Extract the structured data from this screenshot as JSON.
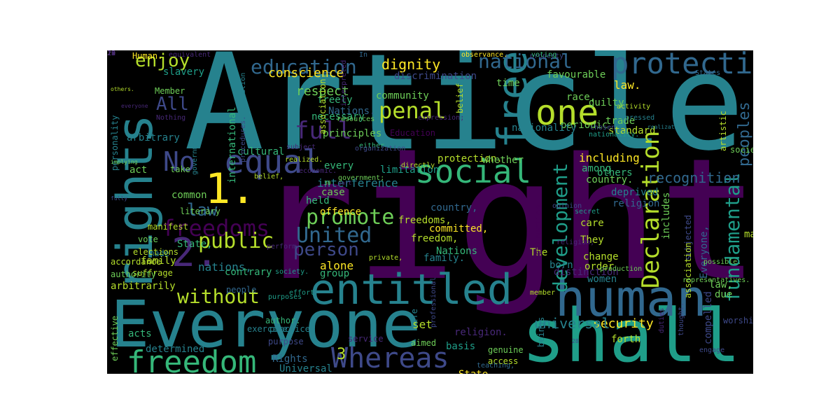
{
  "figure": {
    "background": "#000000",
    "page_background": "#ffffff",
    "palette": [
      "#440154",
      "#482878",
      "#3e4989",
      "#31688e",
      "#26828e",
      "#1f9e89",
      "#35b779",
      "#6ece58",
      "#b5de2b",
      "#fde725"
    ]
  },
  "words": [
    {
      "text": "Article",
      "color": "#26828e"
    },
    {
      "text": "right",
      "color": "#440154"
    },
    {
      "text": "Everyone",
      "color": "#26828e"
    },
    {
      "text": "shall",
      "color": "#1f9e89"
    },
    {
      "text": "human",
      "color": "#31688e"
    },
    {
      "text": "rights",
      "color": "#26828e"
    },
    {
      "text": "entitled",
      "color": "#26828e"
    },
    {
      "text": "freedom",
      "color": "#35b779"
    },
    {
      "text": "Whereas",
      "color": "#3e4989"
    },
    {
      "text": "equal",
      "color": "#3e4989"
    },
    {
      "text": "social",
      "color": "#35b779"
    },
    {
      "text": "one",
      "color": "#b5de2b"
    },
    {
      "text": "protection",
      "color": "#31688e"
    },
    {
      "text": "free",
      "color": "#26828e"
    },
    {
      "text": "national",
      "color": "#31688e"
    },
    {
      "text": "education",
      "color": "#31688e"
    },
    {
      "text": "No",
      "color": "#3e4989"
    },
    {
      "text": "1.",
      "color": "#fde725"
    },
    {
      "text": "2.",
      "color": "#482878"
    },
    {
      "text": "freedoms",
      "color": "#440154"
    },
    {
      "text": "Declaration",
      "color": "#b5de2b"
    },
    {
      "text": "fundamental",
      "color": "#1f9e89"
    },
    {
      "text": "development",
      "color": "#1f9e89"
    },
    {
      "text": "United",
      "color": "#31688e"
    },
    {
      "text": "public",
      "color": "#b5de2b"
    },
    {
      "text": "promote",
      "color": "#6ece58"
    },
    {
      "text": "full",
      "color": "#482878"
    },
    {
      "text": "penal",
      "color": "#b5de2b"
    },
    {
      "text": "enjoy",
      "color": "#b5de2b"
    },
    {
      "text": "All",
      "color": "#3e4989"
    },
    {
      "text": "law",
      "color": "#31688e"
    },
    {
      "text": "person",
      "color": "#3e4989"
    },
    {
      "text": "without",
      "color": "#b5de2b"
    },
    {
      "text": "peoples",
      "color": "#31688e"
    },
    {
      "text": "3",
      "color": "#b5de2b"
    },
    {
      "text": "dignity",
      "color": "#fde725"
    },
    {
      "text": "respect",
      "color": "#6ece58"
    },
    {
      "text": "conscience",
      "color": "#fde725"
    },
    {
      "text": "recognition",
      "color": "#31688e"
    },
    {
      "text": "security",
      "color": "#fde725"
    },
    {
      "text": "universal",
      "color": "#26828e"
    },
    {
      "text": "nations,",
      "color": "#26828e"
    },
    {
      "text": "interference",
      "color": "#26828e"
    },
    {
      "text": "Human.",
      "color": "#fde725"
    },
    {
      "text": "equivalent",
      "color": "#482878"
    },
    {
      "text": "observance.",
      "color": "#fde725"
    },
    {
      "text": "property.",
      "color": "#3e4989"
    },
    {
      "text": "In",
      "color": "#31688e"
    },
    {
      "text": "slavery",
      "color": "#1f9e89"
    },
    {
      "text": "Member",
      "color": "#6ece58"
    },
    {
      "text": "personality",
      "color": "#26828e"
    },
    {
      "text": "arbitrary",
      "color": "#26828e"
    },
    {
      "text": "international",
      "color": "#35b779"
    },
    {
      "text": "act",
      "color": "#6ece58"
    },
    {
      "text": "common",
      "color": "#6ece58"
    },
    {
      "text": "family",
      "color": "#b5de2b"
    },
    {
      "text": "arbitrarily",
      "color": "#b5de2b"
    },
    {
      "text": "acts",
      "color": "#35b779"
    },
    {
      "text": "determined",
      "color": "#26828e"
    },
    {
      "text": "effective",
      "color": "#6ece58"
    },
    {
      "text": "State,",
      "color": "#35b779"
    },
    {
      "text": "made",
      "color": "#26828e"
    },
    {
      "text": "alone",
      "color": "#fde725"
    },
    {
      "text": "group",
      "color": "#35b779"
    },
    {
      "text": "contrary",
      "color": "#35b779"
    },
    {
      "text": "Rights",
      "color": "#31688e"
    },
    {
      "text": "Universal",
      "color": "#26828e"
    },
    {
      "text": "basis",
      "color": "#1f9e89"
    },
    {
      "text": "State.",
      "color": "#fde725"
    },
    {
      "text": "set",
      "color": "#b5de2b"
    },
    {
      "text": "forth",
      "color": "#b5de2b"
    },
    {
      "text": "standard",
      "color": "#b5de2b"
    },
    {
      "text": "trade",
      "color": "#6ece58"
    },
    {
      "text": "guilty",
      "color": "#6ece58"
    },
    {
      "text": "law.",
      "color": "#fde725"
    },
    {
      "text": "periodic",
      "color": "#6ece58"
    },
    {
      "text": "nationality",
      "color": "#26828e"
    },
    {
      "text": "favourable",
      "color": "#6ece58"
    },
    {
      "text": "time",
      "color": "#6ece58"
    },
    {
      "text": "race,",
      "color": "#6ece58"
    },
    {
      "text": "community",
      "color": "#6ece58"
    },
    {
      "text": "discrimination",
      "color": "#3e4989"
    },
    {
      "text": "freely",
      "color": "#35b779"
    },
    {
      "text": "Nations.",
      "color": "#31688e"
    },
    {
      "text": "principles",
      "color": "#6ece58"
    },
    {
      "text": "cultural",
      "color": "#35b779"
    },
    {
      "text": "every",
      "color": "#35b779"
    },
    {
      "text": "limitation",
      "color": "#1f9e89"
    },
    {
      "text": "protection.",
      "color": "#b5de2b"
    },
    {
      "text": "whether",
      "color": "#6ece58"
    },
    {
      "text": "including",
      "color": "#fde725"
    },
    {
      "text": "among",
      "color": "#35b779"
    },
    {
      "text": "country.",
      "color": "#6ece58"
    },
    {
      "text": "others",
      "color": "#35b779"
    },
    {
      "text": "deprived",
      "color": "#26828e"
    },
    {
      "text": "religion",
      "color": "#31688e"
    },
    {
      "text": "may",
      "color": "#b5de2b"
    },
    {
      "text": "held",
      "color": "#35b779"
    },
    {
      "text": "case",
      "color": "#6ece58"
    },
    {
      "text": "necessary",
      "color": "#35b779"
    },
    {
      "text": "offence",
      "color": "#fde725"
    },
    {
      "text": "freedoms,",
      "color": "#b5de2b"
    },
    {
      "text": "country,",
      "color": "#31688e"
    },
    {
      "text": "freedom,",
      "color": "#b5de2b"
    },
    {
      "text": "committed,",
      "color": "#fde725"
    },
    {
      "text": "family.",
      "color": "#26828e"
    },
    {
      "text": "Nations",
      "color": "#35b779"
    },
    {
      "text": "The",
      "color": "#b5de2b"
    },
    {
      "text": "born",
      "color": "#26828e"
    },
    {
      "text": "care",
      "color": "#b5de2b"
    },
    {
      "text": "They",
      "color": "#b5de2b"
    },
    {
      "text": "change",
      "color": "#b5de2b"
    },
    {
      "text": "order",
      "color": "#b5de2b"
    },
    {
      "text": "women",
      "color": "#26828e"
    },
    {
      "text": "distinction",
      "color": "#482878"
    },
    {
      "text": "subjected",
      "color": "#3e4989"
    },
    {
      "text": "includes",
      "color": "#6ece58"
    },
    {
      "text": "Everyone,",
      "color": "#31688e"
    },
    {
      "text": "law,",
      "color": "#6ece58"
    },
    {
      "text": "due",
      "color": "#6ece58"
    },
    {
      "text": "worship",
      "color": "#3e4989"
    },
    {
      "text": "religion.",
      "color": "#482878"
    },
    {
      "text": "compelled",
      "color": "#3e4989"
    },
    {
      "text": "beings",
      "color": "#26828e"
    },
    {
      "text": "life",
      "color": "#26828e"
    },
    {
      "text": "aimed",
      "color": "#6ece58"
    },
    {
      "text": "genuine",
      "color": "#6ece58"
    },
    {
      "text": "access",
      "color": "#b5de2b"
    },
    {
      "text": "author.",
      "color": "#35b779"
    },
    {
      "text": "practice,",
      "color": "#26828e"
    },
    {
      "text": "exercise",
      "color": "#26828e"
    },
    {
      "text": "purpose",
      "color": "#3e4989"
    },
    {
      "text": "service",
      "color": "#482878"
    },
    {
      "text": "professional",
      "color": "#3e4989"
    },
    {
      "text": "teaching,",
      "color": "#31688e"
    },
    {
      "text": "destruction",
      "color": "#440154"
    },
    {
      "text": "duties",
      "color": "#482878"
    },
    {
      "text": "thought.",
      "color": "#3e4989"
    },
    {
      "text": "association",
      "color": "#b5de2b"
    },
    {
      "text": "engage",
      "color": "#3e4989"
    },
    {
      "text": "possible.",
      "color": "#6ece58"
    },
    {
      "text": "representatives.",
      "color": "#6ece58"
    },
    {
      "text": "production",
      "color": "#6ece58"
    },
    {
      "text": "secret",
      "color": "#1f9e89"
    },
    {
      "text": "vote",
      "color": "#6ece58"
    },
    {
      "text": "elections",
      "color": "#b5de2b"
    },
    {
      "text": "manifest",
      "color": "#b5de2b"
    },
    {
      "text": "suffrage",
      "color": "#b5de2b"
    },
    {
      "text": "accordance",
      "color": "#b5de2b"
    },
    {
      "text": "authority",
      "color": "#6ece58"
    },
    {
      "text": "literary",
      "color": "#6ece58"
    },
    {
      "text": "government",
      "color": "#26828e"
    },
    {
      "text": "take",
      "color": "#6ece58"
    },
    {
      "text": "Nothing",
      "color": "#482878"
    },
    {
      "text": "everyone",
      "color": "#482878"
    },
    {
      "text": "co-operation",
      "color": "#26828e"
    },
    {
      "text": "association.",
      "color": "#b5de2b"
    },
    {
      "text": "interpreted",
      "color": "#482878"
    },
    {
      "text": "Education",
      "color": "#440154"
    },
    {
      "text": "resources",
      "color": "#6ece58"
    },
    {
      "text": "expression;",
      "color": "#482878"
    },
    {
      "text": "belief",
      "color": "#b5de2b"
    },
    {
      "text": "nationality.",
      "color": "#1f9e89"
    },
    {
      "text": "chosen",
      "color": "#3e4989"
    },
    {
      "text": "activity",
      "color": "#b5de2b"
    },
    {
      "text": "expressed",
      "color": "#26828e"
    },
    {
      "text": "artistic",
      "color": "#b5de2b"
    },
    {
      "text": "society",
      "color": "#6ece58"
    },
    {
      "text": "voting",
      "color": "#35b779"
    },
    {
      "text": "States",
      "color": "#31688e"
    },
    {
      "text": "either",
      "color": "#35b779"
    },
    {
      "text": "directly",
      "color": "#b5de2b"
    },
    {
      "text": "organization",
      "color": "#3e4989"
    },
    {
      "text": "subject",
      "color": "#482878"
    },
    {
      "text": "realized.",
      "color": "#b5de2b"
    },
    {
      "text": "government;",
      "color": "#6ece58"
    },
    {
      "text": "economic.",
      "color": "#482878"
    },
    {
      "text": "belief,",
      "color": "#b5de2b"
    },
    {
      "text": "procedures.",
      "color": "#3e4989"
    },
    {
      "text": "perform",
      "color": "#482878"
    },
    {
      "text": "purposes",
      "color": "#1f9e89"
    },
    {
      "text": "society.",
      "color": "#1f9e89"
    },
    {
      "text": "effort",
      "color": "#1f9e89"
    },
    {
      "text": "private,",
      "color": "#b5de2b"
    },
    {
      "text": "member",
      "color": "#b5de2b"
    },
    {
      "text": "opinion",
      "color": "#3e4989"
    },
    {
      "text": "people",
      "color": "#31688e"
    },
    {
      "text": "religion;",
      "color": "#482878"
    },
    {
      "text": "others.",
      "color": "#b5de2b"
    },
    {
      "text": "implying",
      "color": "#6ece58"
    },
    {
      "text": "fully",
      "color": "#3e4989"
    },
    {
      "text": "realization,",
      "color": "#26828e"
    },
    {
      "text": "part",
      "color": "#482878"
    },
    {
      "text": "30",
      "color": "#6ece58"
    },
    {
      "text": "28",
      "color": "#3e4989"
    },
    {
      "text": "21",
      "color": "#482878"
    },
    {
      "text": "29",
      "color": "#b5de2b"
    },
    {
      "text": "22",
      "color": "#482878"
    },
    {
      "text": "19",
      "color": "#482878"
    },
    {
      "text": "18",
      "color": "#482878"
    }
  ]
}
